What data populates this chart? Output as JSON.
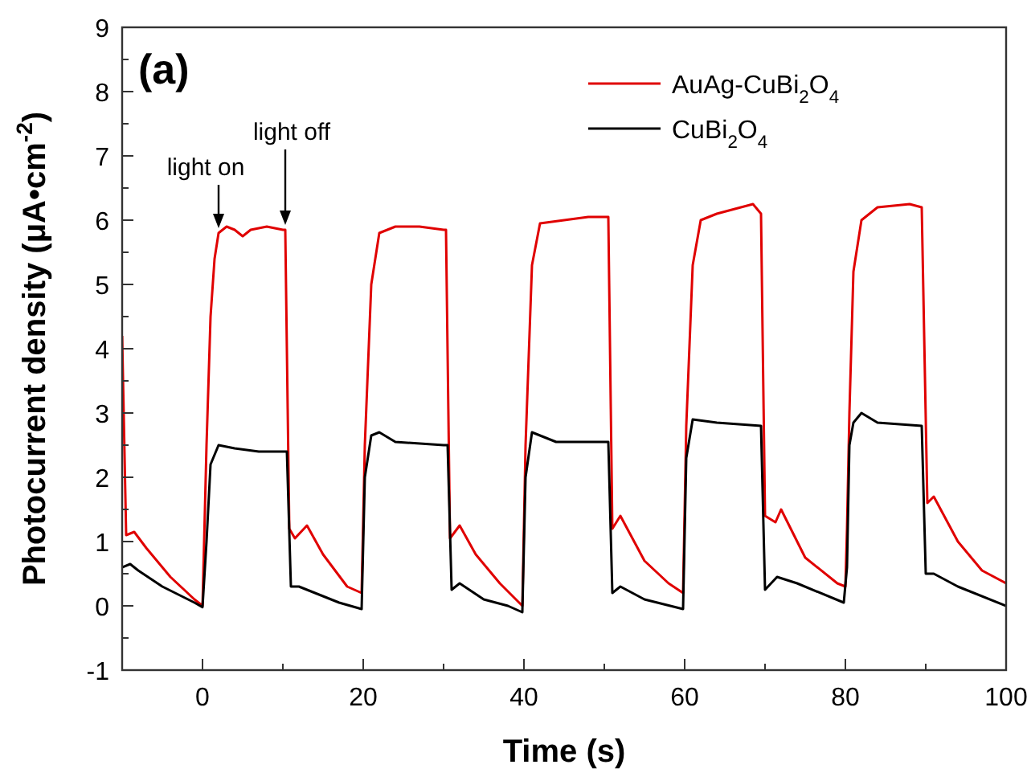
{
  "chart_data": {
    "type": "line",
    "xlabel": "Time (s)",
    "ylabel": "Photocurrent density (μA•cm$^{-2}$)",
    "xlim": [
      -10,
      100
    ],
    "xticks": [
      {
        "value": -10,
        "label": null
      },
      0,
      {
        "value": 10,
        "label": null
      },
      20,
      {
        "value": 30,
        "label": null
      },
      40,
      {
        "value": 50,
        "label": null
      },
      60,
      {
        "value": 70,
        "label": null
      },
      80,
      {
        "value": 90,
        "label": null
      },
      100
    ],
    "ylim": [
      -1,
      9
    ],
    "yticks": [
      -1,
      {
        "value": -0.5,
        "label": null
      },
      0,
      {
        "value": 0.5,
        "label": null
      },
      1,
      {
        "value": 1.5,
        "label": null
      },
      2,
      {
        "value": 2.5,
        "label": null
      },
      3,
      {
        "value": 3.5,
        "label": null
      },
      4,
      {
        "value": 4.5,
        "label": null
      },
      5,
      {
        "value": 5.5,
        "label": null
      },
      6,
      {
        "value": 6.5,
        "label": null
      },
      7,
      {
        "value": 7.5,
        "label": null
      },
      8,
      {
        "value": 8.5,
        "label": null
      },
      9
    ],
    "grid": false,
    "legend": "top right",
    "marker": "none",
    "line_style": "solid",
    "annotations": [
      "(a)",
      {
        "text": "light on",
        "x": 2,
        "y": 5.8
      },
      {
        "text": "light off",
        "x": 10.3,
        "y": 5.85
      }
    ],
    "series": [
      {
        "name": "AuAg-CuBi$_{2}$O$_{4}$",
        "color": "#e00000",
        "x": [
          -10,
          -9.5,
          -8.5,
          -7,
          -4,
          -1,
          0,
          0.5,
          1,
          1.5,
          2,
          3,
          4,
          5,
          6,
          8,
          10,
          10.3,
          10.8,
          11.5,
          13,
          15,
          18,
          19.8,
          20.2,
          21,
          22,
          24,
          27,
          30,
          30.3,
          30.8,
          32,
          34,
          37,
          39.8,
          40.2,
          41,
          42,
          45,
          48,
          50.5,
          51,
          52,
          55,
          58,
          59.8,
          60.2,
          61,
          62,
          64,
          67,
          68.5,
          69.5,
          70,
          71.3,
          72,
          75,
          79,
          80,
          80.2,
          80.5,
          81,
          82,
          84,
          88,
          89.5,
          90.2,
          91,
          94,
          97,
          100
        ],
        "values": [
          4.2,
          1.1,
          1.15,
          0.9,
          0.45,
          0.1,
          0.0,
          2.5,
          4.5,
          5.4,
          5.8,
          5.9,
          5.85,
          5.75,
          5.85,
          5.9,
          5.85,
          5.85,
          1.2,
          1.05,
          1.25,
          0.8,
          0.3,
          0.2,
          2.5,
          5.0,
          5.8,
          5.9,
          5.9,
          5.85,
          5.85,
          1.05,
          1.25,
          0.8,
          0.35,
          0.0,
          2.5,
          5.3,
          5.95,
          6.0,
          6.05,
          6.05,
          1.2,
          1.4,
          0.7,
          0.35,
          0.2,
          2.8,
          5.3,
          6.0,
          6.1,
          6.2,
          6.25,
          6.1,
          1.4,
          1.3,
          1.5,
          0.75,
          0.35,
          0.3,
          1.2,
          3.0,
          5.2,
          6.0,
          6.2,
          6.25,
          6.2,
          1.6,
          1.7,
          1.0,
          0.55,
          0.35
        ]
      },
      {
        "name": "CuBi$_{2}$O$_{4}$",
        "color": "#000000",
        "x": [
          -10,
          -9,
          -8,
          -5,
          -1,
          0,
          0.5,
          1,
          2,
          4,
          7,
          10.5,
          11,
          12,
          14,
          17,
          19.8,
          20.2,
          21,
          22,
          24,
          30,
          30.5,
          31,
          32,
          35,
          38,
          39.8,
          40.2,
          41,
          42,
          44,
          50.5,
          51,
          52,
          55,
          59.8,
          60.2,
          61,
          64,
          69.5,
          70,
          71.5,
          74,
          79.8,
          80.2,
          80.5,
          81,
          82,
          84,
          89.5,
          90,
          91,
          94,
          100
        ],
        "values": [
          0.6,
          0.65,
          0.55,
          0.3,
          0.05,
          -0.02,
          1.0,
          2.2,
          2.5,
          2.45,
          2.4,
          2.4,
          0.3,
          0.3,
          0.2,
          0.05,
          -0.05,
          2.0,
          2.65,
          2.7,
          2.55,
          2.5,
          2.5,
          0.25,
          0.35,
          0.1,
          0.0,
          -0.1,
          2.0,
          2.7,
          2.65,
          2.55,
          2.55,
          0.2,
          0.3,
          0.1,
          -0.05,
          2.3,
          2.9,
          2.85,
          2.8,
          0.25,
          0.45,
          0.35,
          0.05,
          0.6,
          2.5,
          2.85,
          3.0,
          2.85,
          2.8,
          0.5,
          0.5,
          0.3,
          0.0
        ]
      }
    ]
  }
}
